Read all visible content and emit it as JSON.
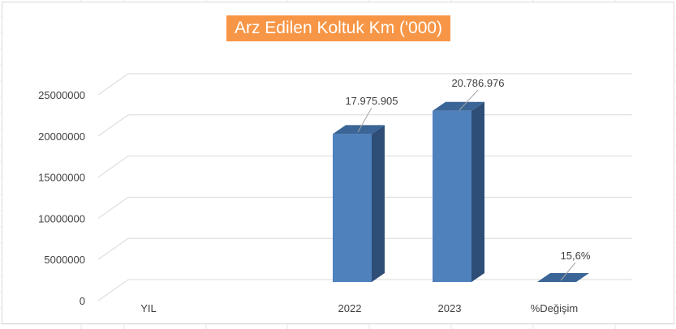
{
  "chart_data": {
    "type": "bar",
    "style": "3d-column",
    "title": "Arz Edilen Koltuk Km ('000)",
    "categories": [
      "YIL",
      "2022",
      "2023",
      "%Değişim"
    ],
    "series": [
      {
        "values": [
          0,
          17975905,
          20786976,
          15.6
        ],
        "data_labels": [
          "",
          "17.975.905",
          "20.786.976",
          "15,6%"
        ]
      }
    ],
    "y_ticks": [
      "0",
      "5000000",
      "10000000",
      "15000000",
      "20000000",
      "25000000"
    ],
    "ylim": [
      0,
      25000000
    ],
    "grid": true,
    "legend": "none",
    "colors": {
      "bar_front": "#4f81bd",
      "bar_side": "#2e4e78",
      "bar_top": "#3a6596",
      "title_background": "#f79646",
      "title_text": "#ffffff",
      "gridline": "#d9d9d9"
    }
  }
}
